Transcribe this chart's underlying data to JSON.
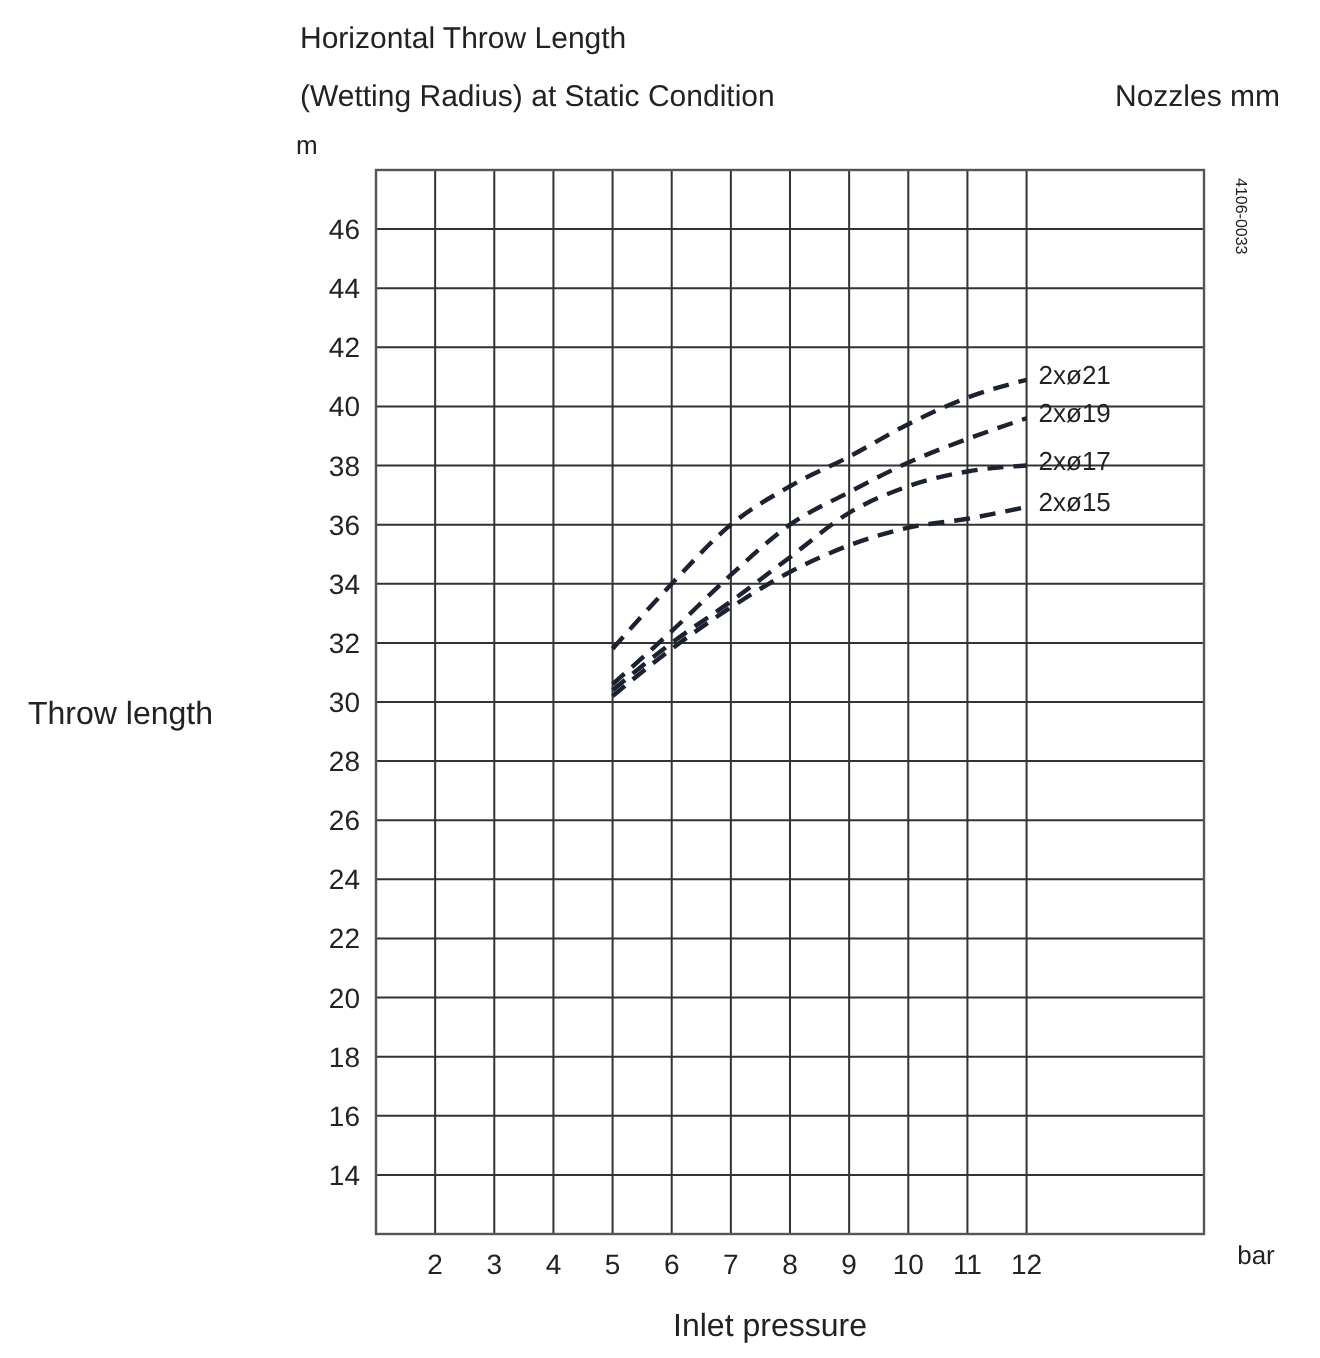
{
  "chart_data": {
    "type": "line",
    "title": "Horizontal Throw Length",
    "subtitle": "(Wetting Radius) at Static Condition",
    "legend_title": "Nozzles mm",
    "xlabel": "Inlet pressure",
    "ylabel": "Throw length",
    "annotations": [
      "m",
      "bar",
      "4106-0033"
    ],
    "x": [
      5,
      6,
      7,
      8,
      9,
      10,
      11,
      12
    ],
    "series": [
      {
        "name": "2xø21",
        "color": "#1c2230",
        "values": [
          31.8,
          34.0,
          36.0,
          37.3,
          38.3,
          39.4,
          40.3,
          40.9
        ]
      },
      {
        "name": "2xø19",
        "color": "#1c2230",
        "values": [
          30.6,
          32.4,
          34.3,
          36.0,
          37.1,
          38.1,
          38.9,
          39.6
        ]
      },
      {
        "name": "2xø17",
        "color": "#1c2230",
        "values": [
          30.4,
          32.0,
          33.4,
          34.9,
          36.4,
          37.3,
          37.8,
          38.0
        ]
      },
      {
        "name": "2xø15",
        "color": "#1c2230",
        "values": [
          30.2,
          31.8,
          33.2,
          34.4,
          35.3,
          35.9,
          36.2,
          36.6
        ]
      }
    ],
    "xlim": [
      1,
      15
    ],
    "xticks": [
      2,
      3,
      4,
      5,
      6,
      7,
      8,
      9,
      10,
      11,
      12
    ],
    "ylim": [
      12,
      48
    ],
    "yticks": [
      14,
      16,
      18,
      20,
      22,
      24,
      26,
      28,
      30,
      32,
      34,
      36,
      38,
      40,
      42,
      44,
      46
    ],
    "grid": true,
    "line_style": "dashed",
    "marker": "none",
    "legend": "right"
  }
}
